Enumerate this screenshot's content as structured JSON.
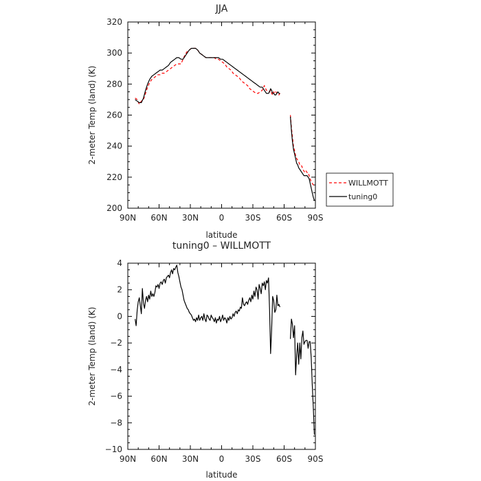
{
  "chart_data": [
    {
      "type": "line",
      "title": "JJA",
      "xlabel": "latitude",
      "ylabel": "2-meter Temp (land) (K)",
      "xlim": [
        90,
        -90
      ],
      "ylim": [
        200,
        320
      ],
      "xticks": [
        90,
        60,
        30,
        0,
        -30,
        -60,
        -90
      ],
      "xtick_labels": [
        "90N",
        "60N",
        "30N",
        "0",
        "30S",
        "60S",
        "90S"
      ],
      "yticks": [
        200,
        220,
        240,
        260,
        280,
        300,
        320
      ],
      "ytick_labels": [
        "200",
        "220",
        "240",
        "260",
        "280",
        "300",
        "320"
      ],
      "legend_position": "right",
      "series": [
        {
          "name": "WILLMOTT",
          "color": "#ff0000",
          "style": "dashed",
          "segments": [
            {
              "x": [
                83,
                81,
                79,
                77,
                75,
                73,
                71,
                69,
                67,
                65,
                63,
                61,
                59,
                57,
                55,
                53,
                51,
                49,
                47,
                45,
                43,
                41,
                39,
                37,
                35,
                33,
                31,
                29,
                27,
                25,
                23,
                21,
                19,
                17,
                15,
                13,
                11,
                9,
                7,
                5,
                3,
                1,
                -1,
                -3,
                -5,
                -7,
                -9,
                -11,
                -13,
                -15,
                -17,
                -19,
                -21,
                -23,
                -25,
                -27,
                -29,
                -31,
                -33,
                -35,
                -37,
                -39,
                -41,
                -43,
                -45,
                -46,
                -47,
                -48,
                -49,
                -50,
                -51,
                -52,
                -53,
                -54,
                -55,
                -56
              ],
              "y": [
                271,
                270,
                267,
                269,
                270,
                274,
                278,
                281,
                283,
                284,
                285,
                286,
                286,
                287,
                287,
                288,
                289,
                290,
                291,
                292,
                293,
                293,
                293,
                296,
                299,
                301,
                302,
                303,
                303,
                303,
                302,
                300,
                299,
                298,
                297,
                297,
                297,
                297,
                297,
                296,
                296,
                295,
                294,
                293,
                291,
                290,
                289,
                287,
                286,
                285,
                284,
                282,
                281,
                280,
                279,
                277,
                276,
                275,
                274,
                274,
                275,
                276,
                279,
                276,
                275,
                275,
                276,
                274,
                273,
                275,
                274,
                275,
                274,
                274,
                273,
                274
              ]
            },
            {
              "x": [
                -66,
                -67,
                -68,
                -69,
                -70,
                -71,
                -72,
                -73,
                -74,
                -75,
                -76,
                -77,
                -78,
                -79,
                -80,
                -81,
                -82,
                -83,
                -84,
                -85,
                -86,
                -87,
                -88,
                -89
              ],
              "y": [
                260,
                252,
                246,
                240,
                237,
                234,
                232,
                231,
                230,
                228,
                228,
                227,
                225,
                224,
                223,
                224,
                223,
                223,
                221,
                219,
                217,
                216,
                215,
                215
              ]
            }
          ]
        },
        {
          "name": "tuning0",
          "color": "#000000",
          "style": "solid",
          "segments": [
            {
              "x": [
                83,
                81,
                79,
                77,
                75,
                73,
                71,
                69,
                67,
                65,
                63,
                61,
                59,
                57,
                55,
                53,
                51,
                49,
                47,
                45,
                43,
                41,
                39,
                37,
                35,
                33,
                31,
                29,
                27,
                25,
                23,
                21,
                19,
                17,
                15,
                13,
                11,
                9,
                7,
                5,
                3,
                1,
                -1,
                -3,
                -5,
                -7,
                -9,
                -11,
                -13,
                -15,
                -17,
                -19,
                -21,
                -23,
                -25,
                -27,
                -29,
                -31,
                -33,
                -35,
                -37,
                -39,
                -41,
                -43,
                -45,
                -46,
                -47,
                -48,
                -49,
                -50,
                -51,
                -52,
                -53,
                -54,
                -55,
                -56
              ],
              "y": [
                270,
                269,
                268,
                268,
                271,
                276,
                280,
                283,
                285,
                286,
                287,
                288,
                289,
                289,
                290,
                291,
                292,
                294,
                295,
                296,
                297,
                297,
                296,
                296,
                298,
                300,
                302,
                303,
                303,
                303,
                302,
                300,
                299,
                298,
                297,
                297,
                297,
                297,
                297,
                297,
                297,
                296,
                296,
                295,
                294,
                293,
                292,
                291,
                290,
                289,
                288,
                287,
                286,
                285,
                284,
                283,
                282,
                281,
                280,
                279,
                278,
                278,
                276,
                274,
                274,
                275,
                277,
                276,
                274,
                274,
                273,
                273,
                274,
                275,
                274,
                274
              ]
            },
            {
              "x": [
                -66,
                -67,
                -68,
                -69,
                -70,
                -71,
                -72,
                -73,
                -74,
                -75,
                -76,
                -77,
                -78,
                -79,
                -80,
                -81,
                -82,
                -83,
                -84,
                -85,
                -86,
                -87,
                -88,
                -89
              ],
              "y": [
                259,
                250,
                243,
                238,
                235,
                232,
                229,
                228,
                226,
                225,
                224,
                223,
                222,
                221,
                221,
                221,
                221,
                220,
                219,
                216,
                213,
                210,
                207,
                205
              ]
            }
          ]
        }
      ]
    },
    {
      "type": "line",
      "title": "tuning0 – WILLMOTT",
      "xlabel": "latitude",
      "ylabel": "2-meter Temp (land) (K)",
      "xlim": [
        90,
        -90
      ],
      "ylim": [
        -10,
        4
      ],
      "xticks": [
        90,
        60,
        30,
        0,
        -30,
        -60,
        -90
      ],
      "xtick_labels": [
        "90N",
        "60N",
        "30N",
        "0",
        "30S",
        "60S",
        "90S"
      ],
      "yticks": [
        -10,
        -8,
        -6,
        -4,
        -2,
        0,
        2,
        4
      ],
      "ytick_labels": [
        "−10",
        "−8",
        "−6",
        "−4",
        "−2",
        "0",
        "2",
        "4"
      ],
      "series": [
        {
          "color": "#000000",
          "style": "solid",
          "segments": [
            {
              "x": [
                83,
                82,
                81,
                80,
                79,
                78,
                77,
                76,
                75,
                74,
                73,
                72,
                71,
                70,
                69,
                68,
                67,
                66,
                65,
                64,
                63,
                62,
                61,
                60,
                59,
                58,
                57,
                56,
                55,
                54,
                53,
                52,
                51,
                50,
                49,
                48,
                47,
                46,
                45,
                44,
                43,
                42,
                41,
                40,
                39,
                38,
                37,
                36,
                35,
                34,
                33,
                32,
                31,
                30,
                29,
                28,
                27,
                26,
                25,
                24,
                23,
                22,
                21,
                20,
                19,
                18,
                17,
                16,
                15,
                14,
                13,
                12,
                11,
                10,
                9,
                8,
                7,
                6,
                5,
                4,
                3,
                2,
                1,
                0,
                -1,
                -2,
                -3,
                -4,
                -5,
                -6,
                -7,
                -8,
                -9,
                -10,
                -11,
                -12,
                -13,
                -14,
                -15,
                -16,
                -17,
                -18,
                -19,
                -20,
                -21,
                -22,
                -23,
                -24,
                -25,
                -26,
                -27,
                -28,
                -29,
                -30,
                -31,
                -32,
                -33,
                -34,
                -35,
                -36,
                -37,
                -38,
                -39,
                -40,
                -41,
                -42,
                -43,
                -44,
                -45,
                -46,
                -47,
                -48,
                -49,
                -50,
                -51,
                -52,
                -53,
                -54,
                -55,
                -56
              ],
              "y": [
                -0.2,
                -0.7,
                0.5,
                1.1,
                1.4,
                0.8,
                0.2,
                2.1,
                1.0,
                0.6,
                1.2,
                1.5,
                1.1,
                1.6,
                1.3,
                1.9,
                1.5,
                1.7,
                1.5,
                1.8,
                2.3,
                2.2,
                2.4,
                2.1,
                2.5,
                2.6,
                2.4,
                2.7,
                2.8,
                2.5,
                2.9,
                3.0,
                3.1,
                2.9,
                3.3,
                3.5,
                3.2,
                3.6,
                3.5,
                3.7,
                3.85,
                3.3,
                3.0,
                2.6,
                2.2,
                2.0,
                1.6,
                1.2,
                1.0,
                0.8,
                0.6,
                0.5,
                0.3,
                0.2,
                0.1,
                -0.1,
                -0.3,
                -0.2,
                -0.4,
                -0.1,
                -0.3,
                0.1,
                -0.3,
                -0.1,
                0.0,
                -0.3,
                0.2,
                -0.2,
                -0.4,
                0.1,
                0.0,
                -0.2,
                -0.3,
                0.1,
                -0.1,
                -0.2,
                -0.4,
                -0.1,
                -0.5,
                -0.2,
                -0.3,
                0.0,
                -0.4,
                -0.2,
                0.1,
                -0.3,
                -0.1,
                -0.2,
                -0.5,
                -0.1,
                -0.3,
                0.0,
                -0.2,
                -0.1,
                0.2,
                0.0,
                0.3,
                0.4,
                0.2,
                0.5,
                0.4,
                0.7,
                0.6,
                1.4,
                0.9,
                0.8,
                1.0,
                1.1,
                0.9,
                1.2,
                1.4,
                1.1,
                1.6,
                1.3,
                1.9,
                1.5,
                2.2,
                2.0,
                1.3,
                2.4,
                2.1,
                1.7,
                2.5,
                2.3,
                2.6,
                2.0,
                2.7,
                2.5,
                2.9,
                0.5,
                -2.8,
                -1.0,
                1.5,
                1.2,
                0.3,
                0.5,
                1.6,
                0.8,
                0.9,
                0.7
              ]
            },
            {
              "x": [
                -66,
                -67,
                -68,
                -69,
                -70,
                -71,
                -72,
                -73,
                -74,
                -75,
                -76,
                -77,
                -78,
                -79,
                -80,
                -81,
                -82,
                -83,
                -84,
                -85,
                -86,
                -87,
                -88,
                -89
              ],
              "y": [
                -1.7,
                -0.2,
                -0.6,
                -1.6,
                -0.7,
                -4.4,
                -2.9,
                -2.0,
                -3.6,
                -2.0,
                -3.2,
                -1.6,
                -1.1,
                -2.1,
                -1.9,
                -1.8,
                -1.8,
                -2.4,
                -1.9,
                -1.9,
                -3.1,
                -5.1,
                -6.9,
                -8.9
              ]
            }
          ]
        }
      ]
    }
  ]
}
